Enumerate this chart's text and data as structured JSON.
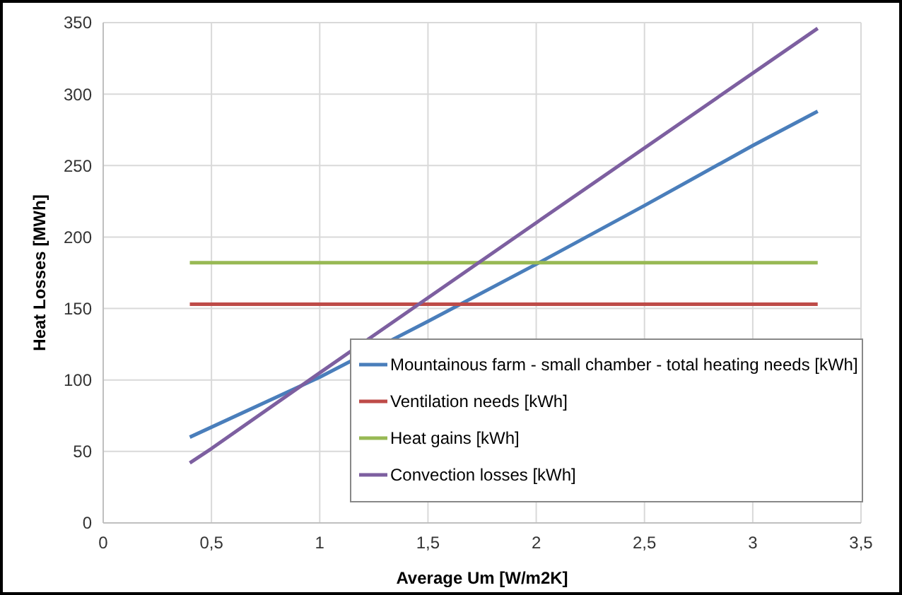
{
  "chart_data": {
    "type": "line",
    "xlabel": "Average Um  [W/m2K]",
    "ylabel": "Heat Losses [MWh]",
    "xlim": [
      0,
      3.5
    ],
    "xticks": [
      0,
      {
        "value": 0.5,
        "label": "0,5"
      },
      1,
      {
        "value": 1.5,
        "label": "1,5"
      },
      2,
      {
        "value": 2.5,
        "label": "2,5"
      },
      3,
      {
        "value": 3.5,
        "label": "3,5"
      }
    ],
    "ylim": [
      0,
      350
    ],
    "yticks": [
      0,
      50,
      100,
      150,
      200,
      250,
      300,
      350
    ],
    "grid": true,
    "legend": "bottom right",
    "marker": "none",
    "line_style": "solid",
    "series": [
      {
        "name": "Mountainous farm - small chamber - total heating needs [kWh]",
        "color": "#4a7ebb",
        "x": [
          0.4,
          1,
          1.5,
          2,
          2.5,
          3,
          3.3
        ],
        "values": [
          60,
          102,
          141,
          181,
          222,
          264,
          288
        ]
      },
      {
        "name": "Ventilation needs [kWh]",
        "color": "#be4b48",
        "x": [
          0.4,
          3.3
        ],
        "values": [
          153,
          153
        ]
      },
      {
        "name": "Heat gains [kWh]",
        "color": "#98b954",
        "x": [
          0.4,
          3.3
        ],
        "values": [
          182,
          182
        ]
      },
      {
        "name": "Convection losses [kWh]",
        "color": "#7d5fa0",
        "x": [
          0.4,
          0.5,
          1,
          2,
          3.3
        ],
        "values": [
          42,
          52,
          105,
          210,
          346
        ]
      }
    ]
  }
}
